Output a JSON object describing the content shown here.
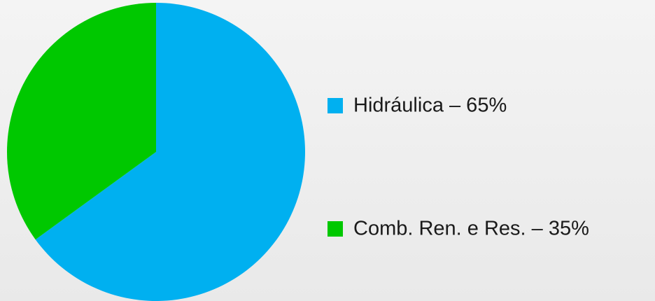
{
  "chart_data": {
    "type": "pie",
    "categories": [
      "Hidráulica – 65%",
      "Comb. Ren. e Res. – 35%"
    ],
    "values": [
      65,
      35
    ],
    "colors": [
      "#00b0f0",
      "#00c800"
    ],
    "legend": "right"
  }
}
